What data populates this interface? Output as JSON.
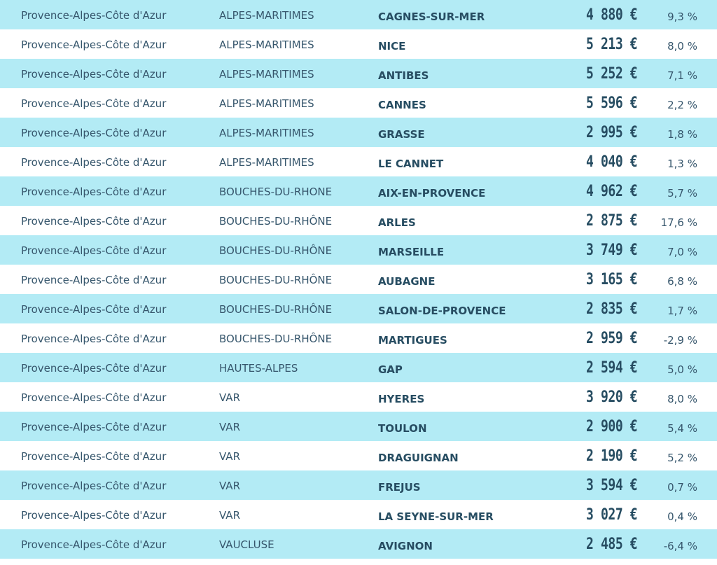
{
  "rows": [
    {
      "region": "Provence-Alpes-Côte d'Azur",
      "department": "ALPES-MARITIMES",
      "city": "CAGNES-SUR-MER",
      "price": "4 880 €",
      "change": "9,3 %"
    },
    {
      "region": "Provence-Alpes-Côte d'Azur",
      "department": "ALPES-MARITIMES",
      "city": "NICE",
      "price": "5 213 €",
      "change": "8,0 %"
    },
    {
      "region": "Provence-Alpes-Côte d'Azur",
      "department": "ALPES-MARITIMES",
      "city": "ANTIBES",
      "price": "5 252 €",
      "change": "7,1 %"
    },
    {
      "region": "Provence-Alpes-Côte d'Azur",
      "department": "ALPES-MARITIMES",
      "city": "CANNES",
      "price": "5 596 €",
      "change": "2,2 %"
    },
    {
      "region": "Provence-Alpes-Côte d'Azur",
      "department": "ALPES-MARITIMES",
      "city": "GRASSE",
      "price": "2 995 €",
      "change": "1,8 %"
    },
    {
      "region": "Provence-Alpes-Côte d'Azur",
      "department": "ALPES-MARITIMES",
      "city": "LE CANNET",
      "price": "4 040 €",
      "change": "1,3 %"
    },
    {
      "region": "Provence-Alpes-Côte d'Azur",
      "department": "BOUCHES-DU-RHONE",
      "city": "AIX-EN-PROVENCE",
      "price": "4 962 €",
      "change": "5,7 %"
    },
    {
      "region": "Provence-Alpes-Côte d'Azur",
      "department": "BOUCHES-DU-RHÔNE",
      "city": "ARLES",
      "price": "2 875 €",
      "change": "17,6 %"
    },
    {
      "region": "Provence-Alpes-Côte d'Azur",
      "department": "BOUCHES-DU-RHÔNE",
      "city": "MARSEILLE",
      "price": "3 749 €",
      "change": "7,0 %"
    },
    {
      "region": "Provence-Alpes-Côte d'Azur",
      "department": "BOUCHES-DU-RHÔNE",
      "city": "AUBAGNE",
      "price": "3 165 €",
      "change": "6,8 %"
    },
    {
      "region": "Provence-Alpes-Côte d'Azur",
      "department": "BOUCHES-DU-RHÔNE",
      "city": "SALON-DE-PROVENCE",
      "price": "2 835 €",
      "change": "1,7 %"
    },
    {
      "region": "Provence-Alpes-Côte d'Azur",
      "department": "BOUCHES-DU-RHÔNE",
      "city": "MARTIGUES",
      "price": "2 959 €",
      "change": "-2,9 %"
    },
    {
      "region": "Provence-Alpes-Côte d'Azur",
      "department": "HAUTES-ALPES",
      "city": "GAP",
      "price": "2 594 €",
      "change": "5,0 %"
    },
    {
      "region": "Provence-Alpes-Côte d'Azur",
      "department": "VAR",
      "city": "HYERES",
      "price": "3 920 €",
      "change": "8,0 %"
    },
    {
      "region": "Provence-Alpes-Côte d'Azur",
      "department": "VAR",
      "city": "TOULON",
      "price": "2 900 €",
      "change": "5,4 %"
    },
    {
      "region": "Provence-Alpes-Côte d'Azur",
      "department": "VAR",
      "city": "DRAGUIGNAN",
      "price": "2 190 €",
      "change": "5,2 %"
    },
    {
      "region": "Provence-Alpes-Côte d'Azur",
      "department": "VAR",
      "city": "FREJUS",
      "price": "3 594 €",
      "change": "0,7 %"
    },
    {
      "region": "Provence-Alpes-Côte d'Azur",
      "department": "VAR",
      "city": "LA SEYNE-SUR-MER",
      "price": "3 027 €",
      "change": "0,4 %"
    },
    {
      "region": "Provence-Alpes-Côte d'Azur",
      "department": "VAUCLUSE",
      "city": "AVIGNON",
      "price": "2 485 €",
      "change": "-6,4 %"
    }
  ],
  "colors": {
    "alt_row": "#b3ebf5",
    "plain_row": "#ffffff",
    "text": "#36566c",
    "text_strong": "#274d62"
  }
}
